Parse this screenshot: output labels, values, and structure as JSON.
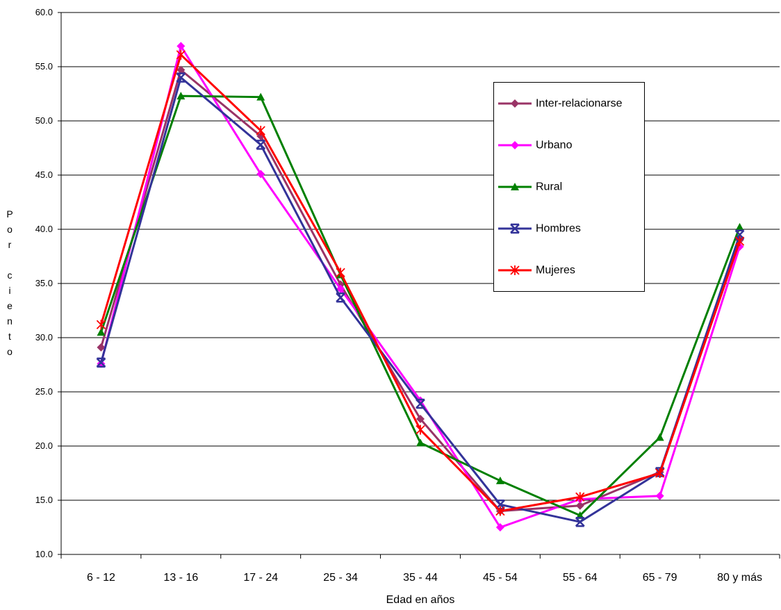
{
  "chart_data": {
    "type": "line",
    "x_label": "Edad en años",
    "y_label": "Por ciento",
    "categories": [
      "6 - 12",
      "13 - 16",
      "17 - 24",
      "25 - 34",
      "35 - 44",
      "45 - 54",
      "55 - 64",
      "65 - 79",
      "80 y más"
    ],
    "series": [
      {
        "name": "Inter-relacionarse",
        "color": "#993366",
        "marker": "diamond",
        "values": [
          29.1,
          54.7,
          48.6,
          34.9,
          22.5,
          14.0,
          14.5,
          17.6,
          39.0
        ]
      },
      {
        "name": "Urbano",
        "color": "#ff00ff",
        "marker": "diamond",
        "values": [
          27.6,
          56.9,
          45.1,
          34.5,
          24.2,
          12.5,
          15.1,
          15.4,
          38.4
        ]
      },
      {
        "name": "Rural",
        "color": "#008000",
        "marker": "triangle",
        "values": [
          30.5,
          52.3,
          52.2,
          35.8,
          20.3,
          16.8,
          13.6,
          20.8,
          40.2
        ]
      },
      {
        "name": "Hombres",
        "color": "#333399",
        "marker": "xstar",
        "values": [
          27.7,
          54.0,
          47.8,
          33.7,
          23.9,
          14.6,
          13.0,
          17.6,
          39.5
        ]
      },
      {
        "name": "Mujeres",
        "color": "#ff0000",
        "marker": "asterisk",
        "values": [
          31.2,
          56.1,
          49.1,
          36.0,
          21.5,
          14.0,
          15.3,
          17.5,
          38.9
        ]
      }
    ],
    "ylim": [
      10,
      60
    ],
    "yticks": [
      {
        "value": 10,
        "label": "10.0"
      },
      {
        "value": 15,
        "label": "15.0"
      },
      {
        "value": 20,
        "label": "20.0"
      },
      {
        "value": 25,
        "label": "25.0"
      },
      {
        "value": 30,
        "label": "30.0"
      },
      {
        "value": 35,
        "label": "35.0"
      },
      {
        "value": 40,
        "label": "40.0"
      },
      {
        "value": 45,
        "label": "45.0"
      },
      {
        "value": 50,
        "label": "50.0"
      },
      {
        "value": 55,
        "label": "55.0"
      },
      {
        "value": 60,
        "label": "60.0"
      }
    ],
    "grid": true
  }
}
